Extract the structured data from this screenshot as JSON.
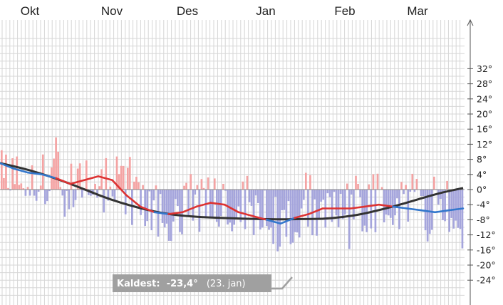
{
  "chart_data": {
    "type": "bar",
    "months": [
      "Okt",
      "Nov",
      "Des",
      "Jan",
      "Feb",
      "Mar"
    ],
    "y_unit": "°",
    "ylim": [
      -28,
      40
    ],
    "y_ticks": [
      32,
      28,
      24,
      20,
      16,
      12,
      8,
      4,
      0,
      -4,
      -8,
      -12,
      -16,
      -20,
      -24
    ],
    "y_tick_labels": [
      "32°",
      "28°",
      "24°",
      "20°",
      "16°",
      "12°",
      "8°",
      "4°",
      "0°",
      "-4°",
      "-8°",
      "-12°",
      "-16°",
      "-20°",
      "-24°"
    ],
    "grid": true,
    "colors": {
      "warm_bar": "#f4a3a3",
      "cold_bar": "#a5a5dc",
      "normal_line": "#333333",
      "temp_line_warm": "#dd3333",
      "temp_line_cold": "#3377cc",
      "annotation_bg": "#a0a0a0"
    },
    "series": [
      {
        "kind": "normal",
        "values": [
          7.0,
          5.8,
          4.3,
          2.5,
          0.5,
          -1.7,
          -3.5,
          -5.0,
          -6.2,
          -6.9,
          -7.3,
          -7.5,
          -7.7,
          -7.8,
          -7.9,
          -7.8,
          -7.8,
          -7.3,
          -6.5,
          -5.2,
          -3.8,
          -2.2,
          -0.7,
          0.4
        ]
      },
      {
        "kind": "mean",
        "values": [
          7.0,
          5.5,
          4.5,
          4.0,
          3.0,
          1.5,
          2.5,
          3.5,
          2.5,
          -1.5,
          -4.5,
          -6.0,
          -6.5,
          -6.0,
          -4.5,
          -3.5,
          -4.0,
          -6.0,
          -7.0,
          -8.0,
          -9.0,
          -7.5,
          -6.5,
          -5.0,
          -5.0,
          -5.0,
          -4.5,
          -4.0,
          -4.5,
          -5.0,
          -5.5,
          -6.0,
          -5.5,
          -5.0
        ]
      }
    ],
    "annotation": {
      "label": "Kaldest:",
      "value": "-23,4°",
      "date": "(23. jan)"
    }
  }
}
